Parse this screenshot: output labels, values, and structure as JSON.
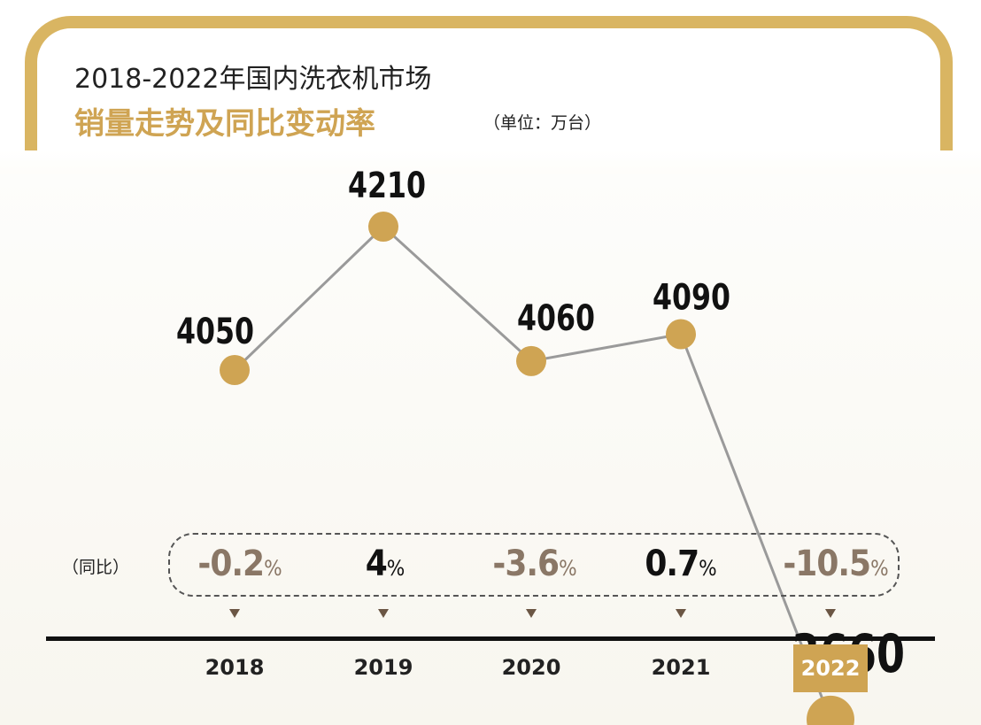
{
  "title_line1": "2018-2022年国内洗衣机市场",
  "title_line2": "销量走势及同比变动率",
  "unit": "（单位：万台）",
  "yoy_label": "（同比）",
  "colors": {
    "gold": "#cfa453",
    "line": "#9a9a9a",
    "negative": "#8a7766",
    "positive": "#111111"
  },
  "chart_data": {
    "type": "line",
    "categories": [
      "2018",
      "2019",
      "2020",
      "2021",
      "2022"
    ],
    "values": [
      4050,
      4210,
      4060,
      4090,
      3660
    ],
    "value_labels": [
      "4050",
      "4210",
      "4060",
      "4090",
      "3660"
    ],
    "yoy": [
      {
        "num": "-0.2",
        "pct": "%",
        "sign": "neg"
      },
      {
        "num": "4",
        "pct": "%",
        "sign": "pos"
      },
      {
        "num": "-3.6",
        "pct": "%",
        "sign": "neg"
      },
      {
        "num": "0.7",
        "pct": "%",
        "sign": "pos"
      },
      {
        "num": "-10.5",
        "pct": "%",
        "sign": "neg"
      }
    ],
    "highlighted_category": "2022",
    "grid": false,
    "legend": "none"
  }
}
